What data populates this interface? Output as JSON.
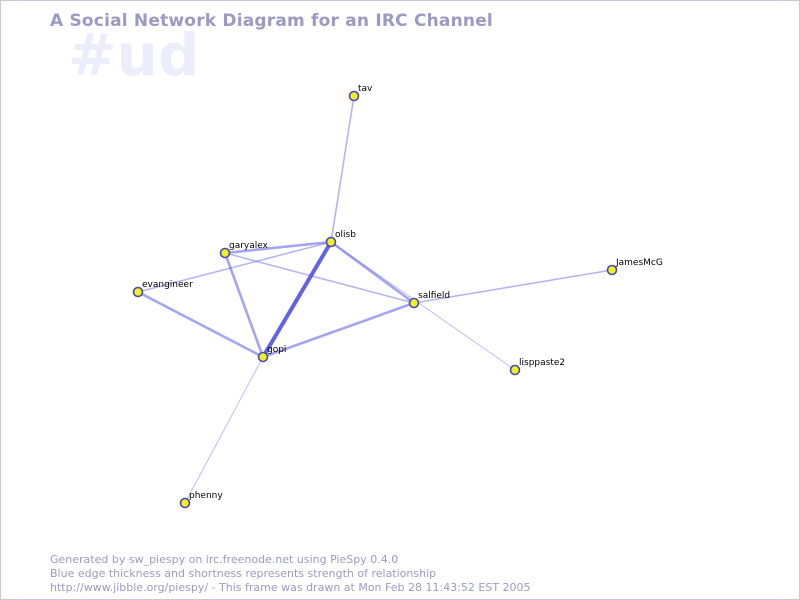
{
  "diagram": {
    "title": "A Social Network Diagram for an IRC Channel",
    "channel": "#ud",
    "colors": {
      "edge": "#5a5ae6",
      "node_fill": "#f0f020",
      "node_stroke": "#4848b8",
      "text_muted": "#9a9ac4",
      "watermark": "#ececfa"
    },
    "nodes": [
      {
        "id": "tav",
        "label": "tav"
      },
      {
        "id": "olisb",
        "label": "olisb"
      },
      {
        "id": "garyalex",
        "label": "garyalex"
      },
      {
        "id": "evangineer",
        "label": "evangineer"
      },
      {
        "id": "gopi",
        "label": "gopi"
      },
      {
        "id": "salfield",
        "label": "salfield"
      },
      {
        "id": "JamesMcG",
        "label": "JamesMcG"
      },
      {
        "id": "lisppaste2",
        "label": "lisppaste2"
      },
      {
        "id": "phenny",
        "label": "phenny"
      }
    ],
    "edges": [
      {
        "source": "olisb",
        "target": "tav",
        "strength": 2
      },
      {
        "source": "olisb",
        "target": "gopi",
        "strength": 4
      },
      {
        "source": "olisb",
        "target": "garyalex",
        "strength": 3
      },
      {
        "source": "olisb",
        "target": "salfield",
        "strength": 3
      },
      {
        "source": "olisb",
        "target": "evangineer",
        "strength": 2
      },
      {
        "source": "garyalex",
        "target": "gopi",
        "strength": 3
      },
      {
        "source": "garyalex",
        "target": "salfield",
        "strength": 2
      },
      {
        "source": "evangineer",
        "target": "gopi",
        "strength": 3
      },
      {
        "source": "gopi",
        "target": "salfield",
        "strength": 3
      },
      {
        "source": "gopi",
        "target": "phenny",
        "strength": 1
      },
      {
        "source": "salfield",
        "target": "JamesMcG",
        "strength": 2
      },
      {
        "source": "olisb",
        "target": "lisppaste2",
        "strength": 1
      }
    ]
  },
  "footer": {
    "line1": "Generated by sw_piespy on irc.freenode.net using PieSpy 0.4.0",
    "line2": "Blue edge thickness and shortness represents strength of relationship",
    "line3": "http://www.jibble.org/piespy/ - This frame was drawn at Mon Feb 28 11:43:52 EST 2005"
  }
}
